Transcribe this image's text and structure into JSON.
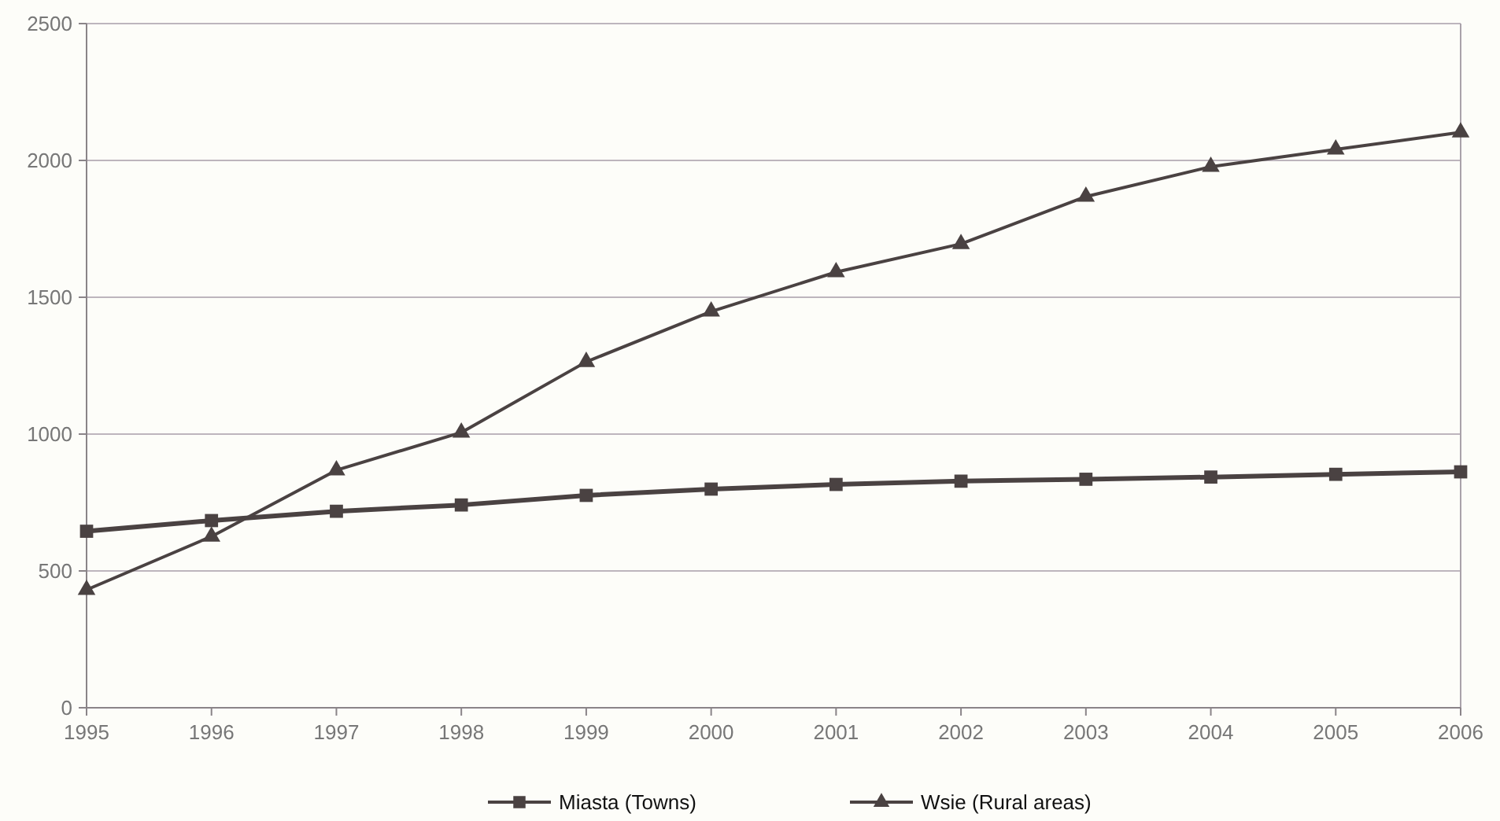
{
  "chart_data": {
    "type": "line",
    "x": [
      1995,
      1996,
      1997,
      1998,
      1999,
      2000,
      2001,
      2002,
      2003,
      2004,
      2005,
      2006
    ],
    "xlim": [
      1995,
      2006
    ],
    "xticks": [
      1995,
      1996,
      1997,
      1998,
      1999,
      2000,
      2001,
      2002,
      2003,
      2004,
      2005,
      2006
    ],
    "ylim": [
      0,
      2500
    ],
    "yticks": [
      0,
      500,
      1000,
      1500,
      2000,
      2500
    ],
    "grid": "y",
    "legend": "bottom",
    "line_style": "solid",
    "series": [
      {
        "name": "Miasta (Towns)",
        "color": "#4a4242",
        "marker": "square",
        "values": [
          645,
          684,
          718,
          741,
          776,
          799,
          816,
          828,
          835,
          843,
          853,
          862
        ]
      },
      {
        "name": "Wsie (Rural areas)",
        "color": "#4a4242",
        "marker": "triangle",
        "values": [
          431,
          626,
          868,
          1006,
          1264,
          1448,
          1592,
          1695,
          1868,
          1977,
          2040,
          2103
        ]
      }
    ]
  }
}
